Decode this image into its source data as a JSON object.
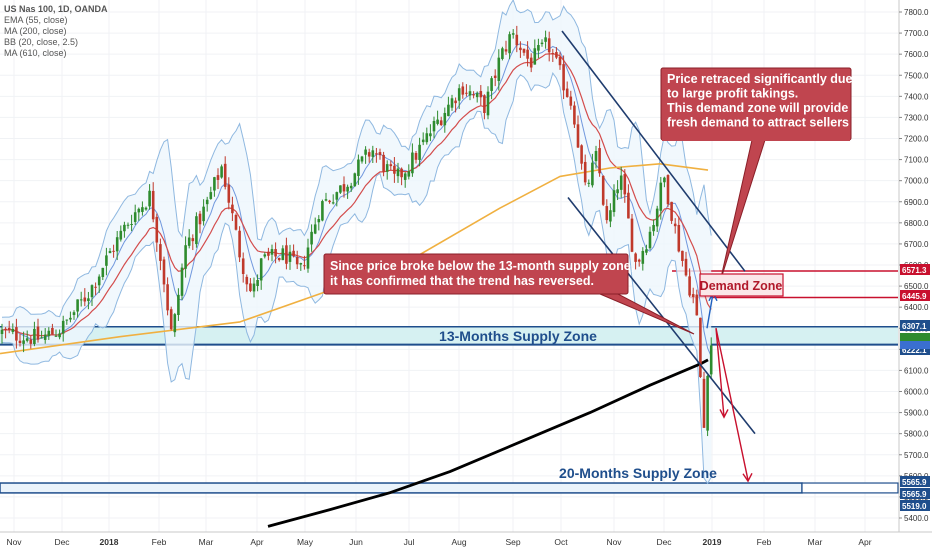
{
  "legend": [
    "US Nas 100, 1D, OANDA",
    "EMA (55, close)",
    "MA (200, close)",
    "BB (20, close, 2.5)",
    "MA (610, close)"
  ],
  "colors": {
    "candle_up": "#2e8b2e",
    "candle_down": "#c0392b",
    "ema55": "#d34c4c",
    "ma200": "#f0b040",
    "bb": "#8fb8e0",
    "bb_basis": "#3a6fd0",
    "ma610": "#000000",
    "trend_line": "#1f3c6e",
    "supply_zone_fill": "#d6f1f2",
    "supply_zone_border": "#1f4e8c",
    "demand_line": "#c8102e",
    "callout_fill": "#c0454f",
    "arrow_red": "#c8102e",
    "arrow_blue": "#1f5fbf"
  },
  "chart_data": {
    "type": "candlestick",
    "title": "US Nas 100, 1D, OANDA",
    "ylim": [
      5370,
      7870
    ],
    "yticks": [
      5400,
      5500,
      5600,
      5700,
      5800,
      5900,
      6000,
      6100,
      6200,
      6300,
      6400,
      6500,
      6600,
      6700,
      6800,
      6900,
      7000,
      7100,
      7200,
      7300,
      7400,
      7500,
      7600,
      7700,
      7800
    ],
    "x_labels": [
      "Nov",
      "Dec",
      "2018",
      "Feb",
      "Mar",
      "Apr",
      "May",
      "Jun",
      "Jul",
      "Aug",
      "Sep",
      "Oct",
      "Nov",
      "Dec",
      "2019",
      "Feb",
      "Mar",
      "Apr"
    ],
    "bold_x_labels": [
      "2018",
      "2019"
    ],
    "close_path": [
      [
        "Nov",
        6280
      ],
      [
        "Dec",
        6300
      ],
      [
        "2018",
        6650
      ],
      [
        "Feb",
        6920
      ],
      [
        "Feb",
        6250
      ],
      [
        "Mar",
        7000
      ],
      [
        "Mar",
        6450
      ],
      [
        "Apr",
        6600
      ],
      [
        "May",
        6580
      ],
      [
        "May",
        6950
      ],
      [
        "Jun",
        7150
      ],
      [
        "Jul",
        7050
      ],
      [
        "Aug",
        7400
      ],
      [
        "Sep",
        7580
      ],
      [
        "Oct",
        7480
      ],
      [
        "Nov",
        6750
      ],
      [
        "Dec",
        6780
      ],
      [
        "Dec",
        5850
      ],
      [
        "Dec",
        6280
      ]
    ],
    "indicators": [
      "EMA (55, close)",
      "MA (200, close)",
      "BB (20, close, 2.5)",
      "MA (610, close)"
    ],
    "zones": [
      {
        "name": "13-Months Supply Zone",
        "low": 6222.1,
        "high": 6307.1
      },
      {
        "name": "20-Months Supply Zone",
        "low": 5519.0,
        "high": 5565.9
      },
      {
        "name": "Demand Zone",
        "low": 6445.9,
        "high": 6571.3
      }
    ],
    "price_labels": [
      "6571.3",
      "6445.9",
      "6307.1",
      "6222.1",
      "5565.9",
      "5565.9",
      "5519.0"
    ],
    "annotations": {
      "demand_zone_label": "Demand Zone",
      "supply_13_label": "13-Months Supply Zone",
      "supply_20_label": "20-Months Supply Zone",
      "callout_right": [
        "Price retraced significantly due",
        "to large profit takings.",
        "This demand zone will provide",
        "fresh demand to attract sellers"
      ],
      "callout_left": [
        "Since price broke below the 13-month supply zone,",
        "it has confirmed that the trend has reversed."
      ]
    }
  }
}
